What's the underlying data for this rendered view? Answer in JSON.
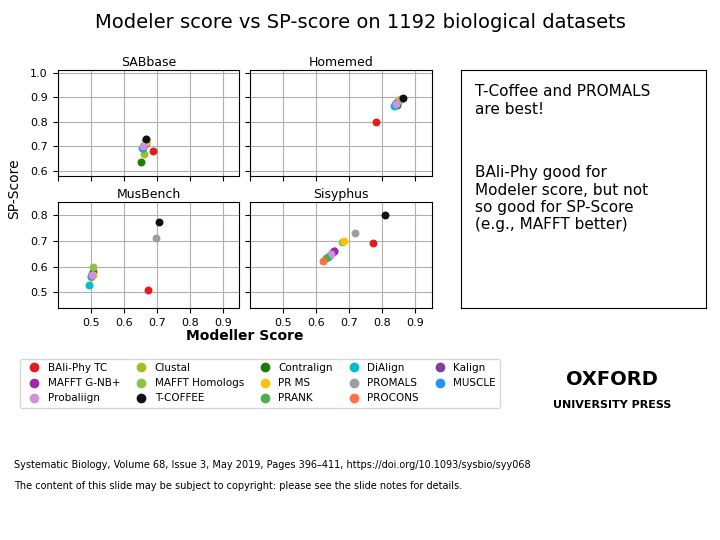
{
  "title": "Modeler score vs SP-score on 1192 biological datasets",
  "xlabel": "Modeller Score",
  "ylabel": "SP-Score",
  "legend": "upper left",
  "annotations": [
    "T-Coffee and PROMALS\nare best!",
    "BAli-Phy good for\nModeler score, but not\nso good for SP-Score\n(e.g., MAFFT better)",
    "Systematic Biology, Volume 68, Issue 3, May 2019, Pages 396–411, https://doi.org/10.1093/sysbio/syy068",
    "The content of this slide may be subject to copyright: please see the slide notes for details.",
    "OXFORD",
    "UNIVERSITY PRESS"
  ],
  "chart_data": [
    {
      "type": "scatter",
      "title": "SABbase",
      "xlim": [
        0.4,
        0.95
      ],
      "xticks": [
        0.4,
        0.5,
        0.6,
        0.7,
        0.8,
        0.9
      ],
      "ylim": [
        0.58,
        1.01
      ],
      "yticks": [
        0.6,
        0.7,
        0.8,
        0.9,
        1.0
      ],
      "grid": true,
      "tick_labels": "y",
      "series": [
        {
          "name": "BAli-Phy TC",
          "color": "#e41a1c",
          "x": [
            0.69
          ],
          "values": [
            0.68
          ]
        },
        {
          "name": "Clustal",
          "color": "#a0c020",
          "x": [
            0.66
          ],
          "values": [
            0.67
          ]
        },
        {
          "name": "Contralign",
          "color": "#1a7f00",
          "x": [
            0.653
          ],
          "values": [
            0.638
          ]
        },
        {
          "name": "DiAlign",
          "color": "#00bcd4",
          "x": [
            0.655
          ],
          "values": [
            0.692
          ]
        },
        {
          "name": "Kalign",
          "color": "#7b3f9e",
          "x": [
            0.663
          ],
          "values": [
            0.708
          ]
        },
        {
          "name": "MAFFT G-NB+",
          "color": "#9c27b0",
          "x": [
            0.667
          ],
          "values": [
            0.714
          ]
        },
        {
          "name": "MAFFT Homologs",
          "color": "#8bc34a",
          "x": [
            0.664
          ],
          "values": [
            0.722
          ]
        },
        {
          "name": "PR MS",
          "color": "#ffc107",
          "x": [
            0.667
          ],
          "values": [
            0.718
          ]
        },
        {
          "name": "PROMALS",
          "color": "#9e9e9e",
          "x": [
            0.669
          ],
          "values": [
            0.728
          ]
        },
        {
          "name": "MUSCLE",
          "color": "#2196f3",
          "x": [
            0.659
          ],
          "values": [
            0.694
          ]
        },
        {
          "name": "Probaliign",
          "color": "#ce93d8",
          "x": [
            0.657
          ],
          "values": [
            0.7
          ]
        },
        {
          "name": "T-COFFEE",
          "color": "#111111",
          "x": [
            0.669
          ],
          "values": [
            0.73
          ]
        }
      ]
    },
    {
      "type": "scatter",
      "title": "Homemed",
      "xlim": [
        0.4,
        0.95
      ],
      "xticks": [
        0.4,
        0.5,
        0.6,
        0.7,
        0.8,
        0.9
      ],
      "ylim": [
        0.58,
        1.01
      ],
      "yticks": [
        0.6,
        0.7,
        0.8,
        0.9,
        1.0
      ],
      "grid": true,
      "tick_labels": false,
      "series": [
        {
          "name": "BAli-Phy TC",
          "color": "#e41a1c",
          "x": [
            0.78
          ],
          "values": [
            0.8
          ]
        },
        {
          "name": "Clustal",
          "color": "#a0c020",
          "x": [
            0.845
          ],
          "values": [
            0.876
          ]
        },
        {
          "name": "Contralign",
          "color": "#1a7f00",
          "x": [
            0.844
          ],
          "values": [
            0.87
          ]
        },
        {
          "name": "DiAlign",
          "color": "#00bcd4",
          "x": [
            0.834
          ],
          "values": [
            0.864
          ]
        },
        {
          "name": "Kalign",
          "color": "#7b3f9e",
          "x": [
            0.844
          ],
          "values": [
            0.88
          ]
        },
        {
          "name": "MAFFT G-NB+",
          "color": "#9c27b0",
          "x": [
            0.847
          ],
          "values": [
            0.884
          ]
        },
        {
          "name": "MAFFT Homologs",
          "color": "#8bc34a",
          "x": [
            0.851
          ],
          "values": [
            0.887
          ]
        },
        {
          "name": "PR MS",
          "color": "#ffc107",
          "x": [
            0.854
          ],
          "values": [
            0.891
          ]
        },
        {
          "name": "PROMALS",
          "color": "#9e9e9e",
          "x": [
            0.857
          ],
          "values": [
            0.894
          ]
        },
        {
          "name": "MUSCLE",
          "color": "#2196f3",
          "x": [
            0.839
          ],
          "values": [
            0.872
          ]
        },
        {
          "name": "Probaliign",
          "color": "#ce93d8",
          "x": [
            0.841
          ],
          "values": [
            0.874
          ]
        },
        {
          "name": "T-COFFEE",
          "color": "#111111",
          "x": [
            0.861
          ],
          "values": [
            0.898
          ]
        }
      ]
    },
    {
      "type": "scatter",
      "title": "MusBench",
      "xlim": [
        0.4,
        0.95
      ],
      "xticks": [
        0.5,
        0.6,
        0.7,
        0.8,
        0.9
      ],
      "ylim": [
        0.44,
        0.85
      ],
      "yticks": [
        0.5,
        0.6,
        0.7,
        0.8
      ],
      "grid": true,
      "series": [
        {
          "name": "BAli-Phy TC",
          "color": "#e41a1c",
          "x": [
            0.675
          ],
          "values": [
            0.51
          ]
        },
        {
          "name": "Clustal",
          "color": "#a0c020",
          "x": [
            0.5
          ],
          "values": [
            0.558
          ]
        },
        {
          "name": "Contralign",
          "color": "#1a7f00",
          "x": [
            0.508
          ],
          "values": [
            0.58
          ]
        },
        {
          "name": "DiAlign",
          "color": "#00bcd4",
          "x": [
            0.494
          ],
          "values": [
            0.53
          ]
        },
        {
          "name": "Kalign",
          "color": "#7b3f9e",
          "x": [
            0.503
          ],
          "values": [
            0.568
          ]
        },
        {
          "name": "MAFFT G-NB+",
          "color": "#9c27b0",
          "x": [
            0.505
          ],
          "values": [
            0.573
          ]
        },
        {
          "name": "MAFFT Homologs",
          "color": "#8bc34a",
          "x": [
            0.508
          ],
          "values": [
            0.598
          ]
        },
        {
          "name": "PR MS",
          "color": "#ffc107",
          "x": [
            0.506
          ],
          "values": [
            0.568
          ]
        },
        {
          "name": "PROMALS",
          "color": "#9e9e9e",
          "x": [
            0.698
          ],
          "values": [
            0.712
          ]
        },
        {
          "name": "MUSCLE",
          "color": "#2196f3",
          "x": [
            0.501
          ],
          "values": [
            0.563
          ]
        },
        {
          "name": "Probaliign",
          "color": "#ce93d8",
          "x": [
            0.503
          ],
          "values": [
            0.568
          ]
        },
        {
          "name": "T-COFFEE",
          "color": "#111111",
          "x": [
            0.708
          ],
          "values": [
            0.775
          ]
        }
      ]
    },
    {
      "type": "scatter",
      "title": "Sisyphus",
      "xlim": [
        0.4,
        0.95
      ],
      "xticks": [
        0.5,
        0.6,
        0.7,
        0.8,
        0.9
      ],
      "ylim": [
        0.44,
        0.85
      ],
      "yticks": [
        0.5,
        0.6,
        0.7,
        0.8
      ],
      "grid": true,
      "tick_labels": "x",
      "series": [
        {
          "name": "BAli-Phy TC",
          "color": "#e41a1c",
          "x": [
            0.77
          ],
          "values": [
            0.692
          ]
        },
        {
          "name": "Clustal",
          "color": "#a0c020",
          "x": [
            0.648
          ],
          "values": [
            0.652
          ]
        },
        {
          "name": "Contralign",
          "color": "#1a7f00",
          "x": [
            0.65
          ],
          "values": [
            0.655
          ]
        },
        {
          "name": "DiAlign",
          "color": "#00bcd4",
          "x": [
            0.635
          ],
          "values": [
            0.638
          ]
        },
        {
          "name": "Kalign",
          "color": "#7b3f9e",
          "x": [
            0.654
          ],
          "values": [
            0.66
          ]
        },
        {
          "name": "MAFFT G-NB+",
          "color": "#9c27b0",
          "x": [
            0.654
          ],
          "values": [
            0.662
          ]
        },
        {
          "name": "MAFFT Homologs",
          "color": "#8bc34a",
          "x": [
            0.678
          ],
          "values": [
            0.695
          ]
        },
        {
          "name": "PR MS",
          "color": "#ffc107",
          "x": [
            0.683
          ],
          "values": [
            0.7
          ]
        },
        {
          "name": "PROMALS",
          "color": "#9e9e9e",
          "x": [
            0.718
          ],
          "values": [
            0.73
          ]
        },
        {
          "name": "MUSCLE",
          "color": "#2196f3",
          "x": [
            0.64
          ],
          "values": [
            0.645
          ]
        },
        {
          "name": "Probaliign",
          "color": "#ce93d8",
          "x": [
            0.644
          ],
          "values": [
            0.648
          ]
        },
        {
          "name": "T-COFFEE",
          "color": "#111111",
          "x": [
            0.808
          ],
          "values": [
            0.8
          ]
        },
        {
          "name": "PRANK",
          "color": "#4caf50",
          "x": [
            0.629
          ],
          "values": [
            0.632
          ]
        },
        {
          "name": "PROCONS",
          "color": "#ff7043",
          "x": [
            0.62
          ],
          "values": [
            0.62
          ]
        }
      ]
    }
  ]
}
